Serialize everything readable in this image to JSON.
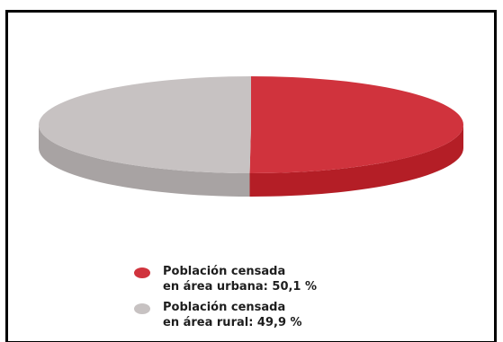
{
  "chart_data": {
    "type": "pie",
    "categories": [
      "Población censada en área urbana",
      "Población censada en área rural"
    ],
    "values": [
      50.1,
      49.9
    ],
    "colors": [
      "#d0333d",
      "#c7c2c2"
    ],
    "side_colors": [
      "#b41e26",
      "#a8a3a3"
    ],
    "title": "",
    "legend_position": "bottom",
    "legend": [
      {
        "line1": "Población censada",
        "line2": "en área urbana: 50,1 %",
        "color": "#d0333d"
      },
      {
        "line1": "Población censada",
        "line2": "en área rural: 49,9 %",
        "color": "#c7c2c2"
      }
    ]
  }
}
